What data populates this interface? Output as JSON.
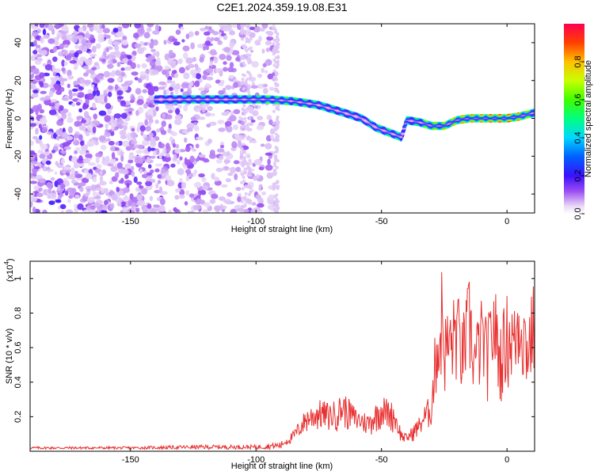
{
  "title": "C2E1.2024.359.19.08.E31",
  "chart_data": [
    {
      "type": "heatmap",
      "xlabel": "Height of straight line (km)",
      "ylabel": "Frequency (Hz)",
      "xlim": [
        -190,
        11
      ],
      "ylim": [
        -50,
        50
      ],
      "xticks": [
        -150,
        -100,
        -50,
        0
      ],
      "yticks": [
        -40,
        -20,
        0,
        20,
        40
      ],
      "colorbar": {
        "label": "Normalized spectral amplitude",
        "range": [
          0,
          1
        ],
        "ticks": [
          "0.0",
          "0.2",
          "0.4",
          "0.6",
          "0.8"
        ],
        "tick_values": [
          0,
          0.2,
          0.4,
          0.6,
          0.8
        ]
      },
      "ridge": {
        "x": [
          -140,
          -125,
          -110,
          -95,
          -85,
          -75,
          -65,
          -58,
          -52,
          -46,
          -42,
          -40,
          -35,
          -30,
          -25,
          -20,
          -15,
          -10,
          -5,
          0,
          5,
          11
        ],
        "freq": [
          10,
          10,
          10,
          10,
          9,
          7,
          3,
          0,
          -5,
          -8,
          -10,
          -1,
          -2,
          -4,
          -4,
          -1,
          0,
          0,
          0,
          0,
          1,
          3
        ],
        "amplitude": [
          0.35,
          0.55,
          0.5,
          0.65,
          0.6,
          0.55,
          0.5,
          0.45,
          0.55,
          0.6,
          0.5,
          0.5,
          0.6,
          0.8,
          0.8,
          0.85,
          0.9,
          0.9,
          1.0,
          1.0,
          0.9,
          0.7
        ]
      },
      "noise_extent_x": [
        -190,
        -92
      ]
    },
    {
      "type": "line",
      "xlabel": "Height of straight line (km)",
      "ylabel": "SNR (10 * v/v)",
      "y_multiplier_label": "(x10",
      "y_multiplier_exp": "4",
      "y_multiplier_close": ")",
      "xlim": [
        -190,
        11
      ],
      "ylim": [
        0,
        1.1
      ],
      "xticks": [
        -150,
        -100,
        -50,
        0
      ],
      "yticks": [
        0.2,
        0.4,
        0.6,
        0.8,
        1.0
      ],
      "series": [
        {
          "color": "#e83030",
          "x": [
            -190,
            -150,
            -120,
            -100,
            -90,
            -85,
            -80,
            -75,
            -70,
            -65,
            -60,
            -55,
            -50,
            -45,
            -42,
            -40,
            -35,
            -30,
            -28,
            -27,
            -26,
            -25,
            -22,
            -20,
            -18,
            -15,
            -13,
            -10,
            -8,
            -5,
            -3,
            0,
            3,
            5,
            8,
            11
          ],
          "envelope": [
            0.02,
            0.02,
            0.03,
            0.03,
            0.05,
            0.12,
            0.25,
            0.3,
            0.28,
            0.34,
            0.25,
            0.22,
            0.33,
            0.28,
            0.12,
            0.1,
            0.2,
            0.35,
            0.85,
            0.75,
            1.08,
            0.8,
            0.85,
            0.98,
            0.75,
            1.02,
            0.7,
            0.9,
            0.75,
            1.0,
            0.72,
            0.92,
            0.85,
            1.05,
            0.8,
            1.0
          ]
        }
      ]
    }
  ]
}
